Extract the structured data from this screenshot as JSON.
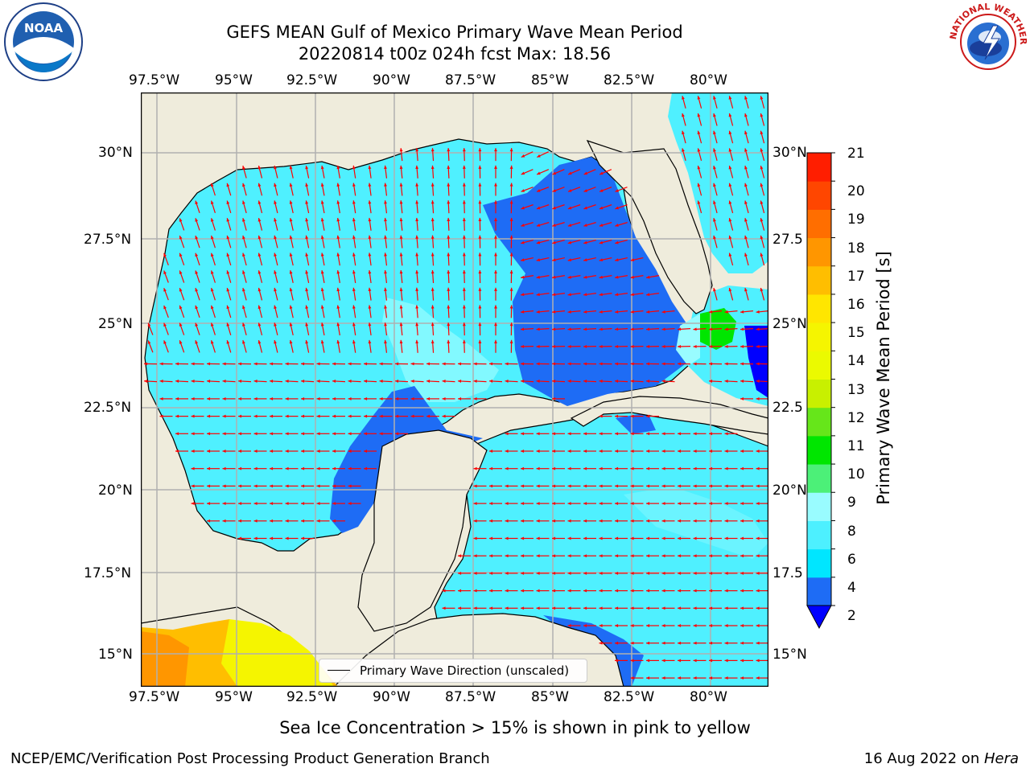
{
  "header": {
    "title_line1": "GEFS MEAN Gulf of Mexico Primary Wave Mean Period",
    "title_line2": "20220814 t00z 024h fcst   Max: 18.56"
  },
  "map": {
    "lon_ticks": [
      "97.5°W",
      "95°W",
      "92.5°W",
      "90°W",
      "87.5°W",
      "85°W",
      "82.5°W",
      "80°W"
    ],
    "lat_ticks_left": [
      "30°N",
      "27.5°N",
      "25°N",
      "22.5°N",
      "20°N",
      "17.5°N",
      "15°N"
    ],
    "lat_ticks_right": [
      "30°N",
      "27.5",
      "25°N",
      "22.5",
      "20°N",
      "17.5",
      "15°N"
    ],
    "legend_label": "Primary Wave Direction (unscaled)",
    "arrow_color": "#ff0000",
    "land_color": "#efecdc",
    "grid": true
  },
  "colorbar": {
    "label": "Primary Wave Mean Period [s]",
    "tick_labels": [
      "2",
      "4",
      "6",
      "8",
      "9",
      "10",
      "11",
      "12",
      "13",
      "14",
      "15",
      "16",
      "17",
      "18",
      "19",
      "20",
      "21"
    ],
    "bins": [
      {
        "from": 2,
        "to": 4,
        "color": "#1e6cf5"
      },
      {
        "from": 4,
        "to": 6,
        "color": "#00e6ff"
      },
      {
        "from": 6,
        "to": 8,
        "color": "#4df0ff"
      },
      {
        "from": 8,
        "to": 9,
        "color": "#99fcff"
      },
      {
        "from": 9,
        "to": 10,
        "color": "#4cf078"
      },
      {
        "from": 10,
        "to": 11,
        "color": "#00e600"
      },
      {
        "from": 11,
        "to": 12,
        "color": "#66e61a"
      },
      {
        "from": 12,
        "to": 13,
        "color": "#c8f000"
      },
      {
        "from": 13,
        "to": 14,
        "color": "#ebfa00"
      },
      {
        "from": 14,
        "to": 15,
        "color": "#f5f500"
      },
      {
        "from": 15,
        "to": 16,
        "color": "#ffe600"
      },
      {
        "from": 16,
        "to": 17,
        "color": "#ffbe00"
      },
      {
        "from": 17,
        "to": 18,
        "color": "#ff9600"
      },
      {
        "from": 18,
        "to": 19,
        "color": "#ff6e00"
      },
      {
        "from": 19,
        "to": 20,
        "color": "#ff4600"
      },
      {
        "from": 20,
        "to": 21,
        "color": "#ff1e00"
      }
    ],
    "under_color": "#0000ff"
  },
  "footer": {
    "note": "Sea Ice Concentration > 15% is shown in pink to yellow",
    "left": "NCEP/EMC/Verification Post Processing Product Generation Branch",
    "date": "16 Aug 2022 on ",
    "machine": "Hera"
  },
  "logos": {
    "noaa_text": "NOAA",
    "nws_text": "NATIONAL WEATHER SERVICE"
  }
}
